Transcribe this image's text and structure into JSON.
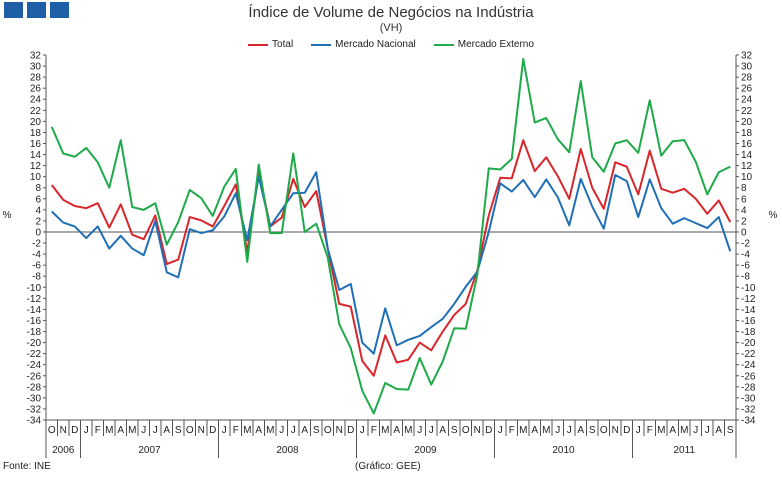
{
  "brand": {
    "logo_name": "gee-logo"
  },
  "footer": {
    "source": "Fonte: INE",
    "credit": "(Gráfico: GEE)"
  },
  "chart_data": {
    "type": "line",
    "title": "Índice de Volume de Negócios na Indústria",
    "subtitle": "(VH)",
    "ylabel_left": "%",
    "ylabel_right": "%",
    "ylim": [
      -34,
      32
    ],
    "ytick_step": 2,
    "grid": false,
    "legend_position": "top-center",
    "x": [
      "O",
      "N",
      "D",
      "J",
      "F",
      "M",
      "A",
      "M",
      "J",
      "J",
      "A",
      "S",
      "O",
      "N",
      "D",
      "J",
      "F",
      "M",
      "A",
      "M",
      "J",
      "J",
      "A",
      "S",
      "O",
      "N",
      "D",
      "J",
      "F",
      "M",
      "A",
      "M",
      "J",
      "J",
      "A",
      "S",
      "O",
      "N",
      "D",
      "J",
      "F",
      "M",
      "A",
      "M",
      "J",
      "J",
      "A",
      "S",
      "O",
      "N",
      "D",
      "J",
      "F",
      "M",
      "A",
      "M",
      "J",
      "J",
      "A",
      "S"
    ],
    "years": [
      {
        "label": "2006",
        "start": 0,
        "end": 2
      },
      {
        "label": "2007",
        "start": 3,
        "end": 14
      },
      {
        "label": "2008",
        "start": 15,
        "end": 26
      },
      {
        "label": "2009",
        "start": 27,
        "end": 38
      },
      {
        "label": "2010",
        "start": 39,
        "end": 50
      },
      {
        "label": "2011",
        "start": 51,
        "end": 59
      }
    ],
    "series": [
      {
        "name": "Total",
        "color": "#d9262b",
        "values": [
          8.5,
          5.8,
          4.7,
          4.3,
          5.2,
          0.8,
          5.0,
          -0.5,
          -1.3,
          3.0,
          -5.8,
          -5.0,
          2.7,
          2.1,
          1.0,
          4.7,
          8.6,
          -3.6,
          10.7,
          1.0,
          2.6,
          9.6,
          4.5,
          7.4,
          -3.0,
          -13.0,
          -13.5,
          -23.3,
          -26.0,
          -18.7,
          -23.6,
          -23.1,
          -20.0,
          -21.4,
          -18.0,
          -15.0,
          -13.0,
          -7.0,
          3.0,
          9.8,
          9.7,
          16.6,
          11.0,
          13.5,
          10.1,
          6.0,
          15.0,
          8.0,
          4.2,
          12.6,
          11.8,
          6.8,
          14.7,
          7.8,
          7.1,
          7.8,
          6.0,
          3.3,
          5.7,
          1.8
        ]
      },
      {
        "name": "Mercado Nacional",
        "color": "#1f6fb6",
        "values": [
          3.7,
          1.7,
          1.0,
          -1.1,
          1.0,
          -3.0,
          -0.7,
          -3.0,
          -4.2,
          2.0,
          -7.3,
          -8.2,
          0.5,
          -0.2,
          0.3,
          2.8,
          7.0,
          -1.5,
          10.0,
          1.0,
          4.0,
          7.0,
          7.1,
          10.8,
          -3.0,
          -10.5,
          -9.4,
          -20.0,
          -22.0,
          -13.8,
          -20.5,
          -19.5,
          -18.8,
          -17.2,
          -15.7,
          -13.0,
          -9.9,
          -7.2,
          0.0,
          8.8,
          7.3,
          9.4,
          6.3,
          9.5,
          6.3,
          1.2,
          9.6,
          4.6,
          0.6,
          10.3,
          9.2,
          2.7,
          9.5,
          4.3,
          1.5,
          2.5,
          1.6,
          0.7,
          2.7,
          -3.5
        ]
      },
      {
        "name": "Mercado Externo",
        "color": "#1faa4a",
        "values": [
          19.0,
          14.2,
          13.6,
          15.2,
          12.6,
          8.0,
          16.6,
          4.5,
          4.0,
          5.2,
          -2.3,
          1.8,
          7.6,
          6.1,
          2.9,
          8.2,
          11.4,
          -5.4,
          12.2,
          -0.2,
          -0.2,
          14.2,
          0.0,
          1.5,
          -4.6,
          -16.7,
          -21.0,
          -28.7,
          -32.8,
          -27.3,
          -28.4,
          -28.5,
          -22.8,
          -27.6,
          -23.4,
          -17.4,
          -17.5,
          -7.8,
          11.5,
          11.3,
          13.2,
          31.3,
          19.8,
          20.6,
          16.8,
          14.4,
          27.3,
          13.5,
          10.9,
          16.0,
          16.6,
          14.3,
          23.8,
          13.8,
          16.4,
          16.6,
          12.7,
          6.8,
          10.8,
          11.8
        ]
      }
    ]
  }
}
